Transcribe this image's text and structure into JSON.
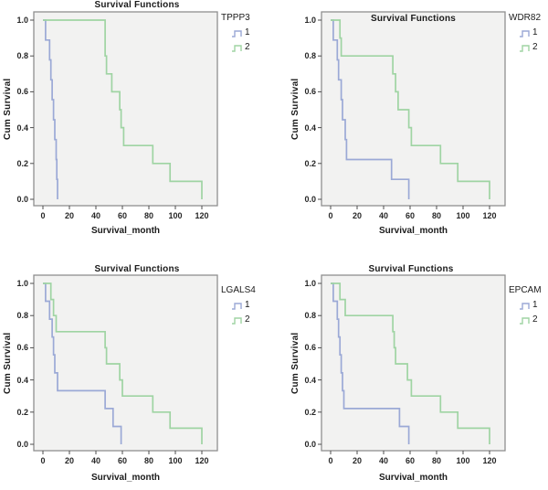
{
  "figure": {
    "kind": "kaplan-meier-survival-grid",
    "rows": 2,
    "cols": 2
  },
  "colors": {
    "group1_line": "#9ba9d6",
    "group2_line": "#9fd4a3",
    "plot_background": "#f2f2f1",
    "frame_border": "#8f8f8f",
    "tick_mark": "#4d4d4d",
    "text": "#1a1a1a"
  },
  "chart_data": [
    {
      "type": "line",
      "subtype": "kaplan-meier-step",
      "title": "Survival Functions",
      "legend_title": "TPPP3",
      "xlabel": "Survival_month",
      "ylabel": "Cum Survival",
      "xticks": [
        0,
        20,
        40,
        60,
        80,
        100,
        120
      ],
      "yticks": [
        1.0,
        0.8,
        0.6,
        0.4,
        0.2,
        0.0
      ],
      "xlim": [
        0,
        132
      ],
      "ylim": [
        0,
        1
      ],
      "grid": false,
      "legend_position": "right-outside",
      "title_inside_plot": false,
      "series": [
        {
          "name": "1",
          "color": "#9ba9d6",
          "steps": [
            [
              0,
              1
            ],
            [
              2,
              0.889
            ],
            [
              5,
              0.778
            ],
            [
              6,
              0.667
            ],
            [
              7,
              0.556
            ],
            [
              8,
              0.444
            ],
            [
              9,
              0.333
            ],
            [
              10,
              0.222
            ],
            [
              10.5,
              0.111
            ],
            [
              11,
              0
            ]
          ]
        },
        {
          "name": "2",
          "color": "#9fd4a3",
          "steps": [
            [
              0,
              1
            ],
            [
              47,
              0.8
            ],
            [
              48,
              0.7
            ],
            [
              52,
              0.6
            ],
            [
              58,
              0.5
            ],
            [
              59,
              0.4
            ],
            [
              61,
              0.3
            ],
            [
              83,
              0.2
            ],
            [
              96,
              0.1
            ],
            [
              120,
              0
            ]
          ]
        }
      ]
    },
    {
      "type": "line",
      "subtype": "kaplan-meier-step",
      "title": "Survival Functions",
      "legend_title": "WDR82",
      "xlabel": "Survival_month",
      "ylabel": "Cum Survival",
      "xticks": [
        0,
        20,
        40,
        60,
        80,
        100,
        120
      ],
      "yticks": [
        1.0,
        0.8,
        0.6,
        0.4,
        0.2,
        0.0
      ],
      "xlim": [
        0,
        132
      ],
      "ylim": [
        0,
        1
      ],
      "grid": false,
      "legend_position": "right-outside",
      "title_inside_plot": true,
      "series": [
        {
          "name": "1",
          "color": "#9ba9d6",
          "steps": [
            [
              0,
              1
            ],
            [
              2,
              0.889
            ],
            [
              5,
              0.778
            ],
            [
              6,
              0.667
            ],
            [
              8,
              0.556
            ],
            [
              9,
              0.444
            ],
            [
              11,
              0.333
            ],
            [
              12,
              0.222
            ],
            [
              46,
              0.111
            ],
            [
              59,
              0
            ]
          ]
        },
        {
          "name": "2",
          "color": "#9fd4a3",
          "steps": [
            [
              0,
              1
            ],
            [
              7,
              0.9
            ],
            [
              8,
              0.8
            ],
            [
              47,
              0.7
            ],
            [
              49,
              0.6
            ],
            [
              51,
              0.5
            ],
            [
              59,
              0.4
            ],
            [
              61,
              0.3
            ],
            [
              83,
              0.2
            ],
            [
              96,
              0.1
            ],
            [
              120,
              0
            ]
          ]
        }
      ]
    },
    {
      "type": "line",
      "subtype": "kaplan-meier-step",
      "title": "Survival Functions",
      "legend_title": "LGALS4",
      "xlabel": "Survival_month",
      "ylabel": "Cum Survival",
      "xticks": [
        0,
        20,
        40,
        60,
        80,
        100,
        120
      ],
      "yticks": [
        1.0,
        0.8,
        0.6,
        0.4,
        0.2,
        0.0
      ],
      "xlim": [
        0,
        132
      ],
      "ylim": [
        0,
        1
      ],
      "grid": false,
      "legend_position": "right-outside",
      "title_inside_plot": false,
      "series": [
        {
          "name": "1",
          "color": "#9ba9d6",
          "steps": [
            [
              0,
              1
            ],
            [
              2,
              0.889
            ],
            [
              5,
              0.778
            ],
            [
              7,
              0.667
            ],
            [
              8,
              0.556
            ],
            [
              9,
              0.444
            ],
            [
              11,
              0.333
            ],
            [
              47,
              0.222
            ],
            [
              53,
              0.111
            ],
            [
              59,
              0
            ]
          ]
        },
        {
          "name": "2",
          "color": "#9fd4a3",
          "steps": [
            [
              0,
              1
            ],
            [
              6,
              0.9
            ],
            [
              8,
              0.8
            ],
            [
              10,
              0.7
            ],
            [
              47,
              0.6
            ],
            [
              48,
              0.5
            ],
            [
              58,
              0.4
            ],
            [
              60,
              0.3
            ],
            [
              83,
              0.2
            ],
            [
              96,
              0.1
            ],
            [
              120,
              0
            ]
          ]
        }
      ]
    },
    {
      "type": "line",
      "subtype": "kaplan-meier-step",
      "title": "Survival Functions",
      "legend_title": "EPCAM",
      "xlabel": "Survival_month",
      "ylabel": "Cum Survival",
      "xticks": [
        0,
        20,
        40,
        60,
        80,
        100,
        120
      ],
      "yticks": [
        1.0,
        0.8,
        0.6,
        0.4,
        0.2,
        0.0
      ],
      "xlim": [
        0,
        132
      ],
      "ylim": [
        0,
        1
      ],
      "grid": false,
      "legend_position": "right-outside",
      "title_inside_plot": false,
      "series": [
        {
          "name": "1",
          "color": "#9ba9d6",
          "steps": [
            [
              0,
              1
            ],
            [
              2,
              0.889
            ],
            [
              5,
              0.778
            ],
            [
              6,
              0.667
            ],
            [
              7,
              0.556
            ],
            [
              8,
              0.444
            ],
            [
              9,
              0.333
            ],
            [
              10,
              0.222
            ],
            [
              52,
              0.111
            ],
            [
              59,
              0
            ]
          ]
        },
        {
          "name": "2",
          "color": "#9fd4a3",
          "steps": [
            [
              0,
              1
            ],
            [
              7,
              0.9
            ],
            [
              11,
              0.8
            ],
            [
              47,
              0.7
            ],
            [
              48,
              0.6
            ],
            [
              49,
              0.5
            ],
            [
              58,
              0.4
            ],
            [
              61,
              0.3
            ],
            [
              83,
              0.2
            ],
            [
              96,
              0.1
            ],
            [
              120,
              0
            ]
          ]
        }
      ]
    }
  ]
}
